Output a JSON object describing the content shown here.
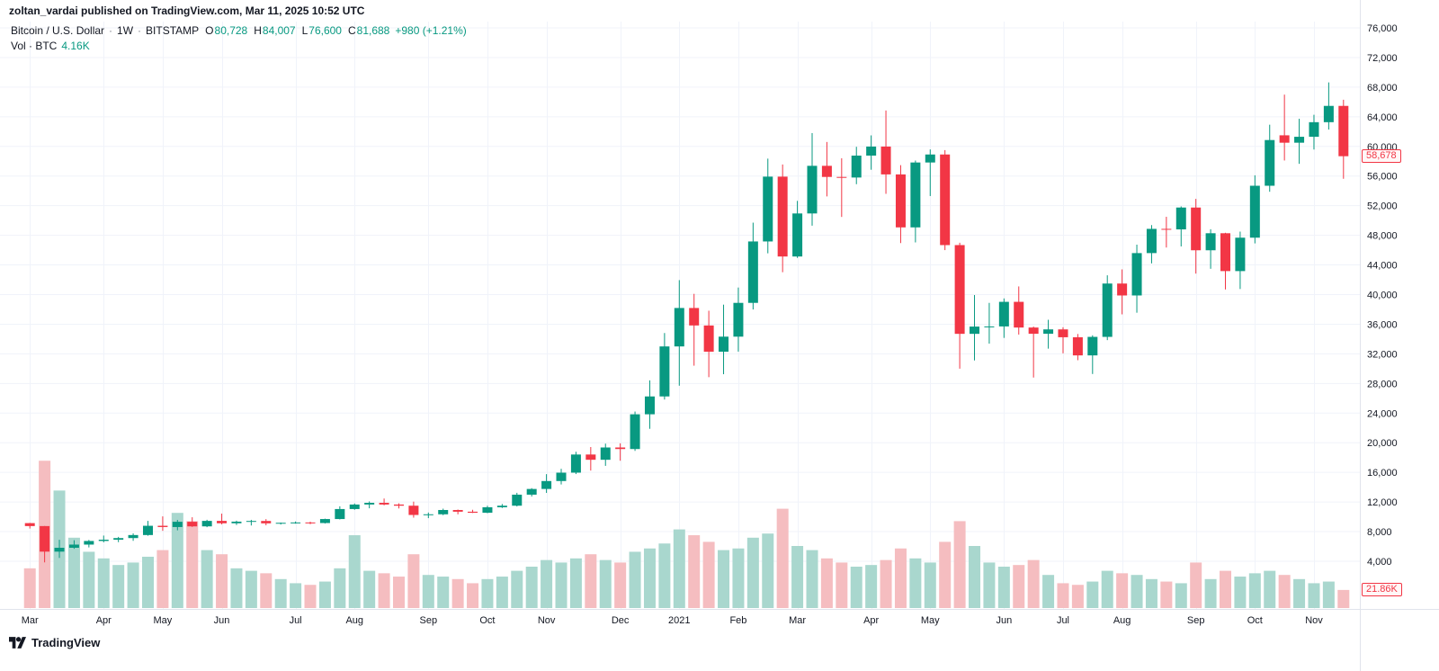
{
  "header": {
    "attribution": "zoltan_vardai published on TradingView.com, Mar 11, 2025 10:52 UTC"
  },
  "legend": {
    "title": "Bitcoin / U.S. Dollar",
    "sep": "·",
    "interval": "1W",
    "exchange": "BITSTAMP",
    "o_label": "O",
    "o_value": "80,728",
    "h_label": "H",
    "h_value": "84,007",
    "l_label": "L",
    "l_value": "76,600",
    "c_label": "C",
    "c_value": "81,688",
    "change": "+980 (+1.21%)",
    "vol_label": "Vol · BTC",
    "vol_value": "4.16K"
  },
  "price_badge": "58,678",
  "volume_badge": "21.86K",
  "watermark": "TradingView",
  "colors": {
    "up": "#089981",
    "down": "#f23645",
    "vol_up": "#a9d7ce",
    "vol_down": "#f5bdc0",
    "grid": "#f0f3fa",
    "axis_border": "#e0e3eb",
    "axis_text": "#131722",
    "badge": "#f23645"
  },
  "chart_data": {
    "type": "candlestick",
    "title": "Bitcoin / U.S. Dollar · 1W · BITSTAMP",
    "legend_note": "candles are [open, high, low, close, volume_thousand_btc] per week, Mar 2020 - Nov 2021",
    "grid": true,
    "price_axis": {
      "min": 4000,
      "max": 76000,
      "tick_step": 4000,
      "tick_values": [
        76000,
        72000,
        68000,
        64000,
        60000,
        56000,
        52000,
        48000,
        44000,
        40000,
        36000,
        32000,
        28000,
        24000,
        20000,
        16000,
        12000,
        8000,
        4000
      ],
      "tick_labels": [
        "76,000",
        "72,000",
        "68,000",
        "64,000",
        "60,000",
        "56,000",
        "52,000",
        "48,000",
        "44,000",
        "40,000",
        "36,000",
        "32,000",
        "28,000",
        "24,000",
        "20,000",
        "16,000",
        "12,000",
        "8,000",
        "4,000"
      ]
    },
    "x_ticks": [
      {
        "label": "Mar",
        "i": 0
      },
      {
        "label": "Apr",
        "i": 5
      },
      {
        "label": "May",
        "i": 9
      },
      {
        "label": "Jun",
        "i": 13
      },
      {
        "label": "Jul",
        "i": 18
      },
      {
        "label": "Aug",
        "i": 22
      },
      {
        "label": "Sep",
        "i": 27
      },
      {
        "label": "Oct",
        "i": 31
      },
      {
        "label": "Nov",
        "i": 35
      },
      {
        "label": "Dec",
        "i": 40
      },
      {
        "label": "2021",
        "i": 44
      },
      {
        "label": "Feb",
        "i": 48
      },
      {
        "label": "Mar",
        "i": 52
      },
      {
        "label": "Apr",
        "i": 57
      },
      {
        "label": "May",
        "i": 61
      },
      {
        "label": "Jun",
        "i": 66
      },
      {
        "label": "Jul",
        "i": 70
      },
      {
        "label": "Aug",
        "i": 74
      },
      {
        "label": "Sep",
        "i": 79
      },
      {
        "label": "Oct",
        "i": 83
      },
      {
        "label": "Nov",
        "i": 87
      }
    ],
    "last_close": 58678,
    "last_volume_k": 21.86,
    "candles": [
      [
        9150,
        9180,
        8420,
        8750,
        48
      ],
      [
        8750,
        8760,
        3850,
        5300,
        178
      ],
      [
        5300,
        6900,
        4450,
        5820,
        142
      ],
      [
        5820,
        6840,
        5680,
        6250,
        85
      ],
      [
        6250,
        6880,
        5870,
        6740,
        68
      ],
      [
        6740,
        7470,
        6560,
        6910,
        60
      ],
      [
        6910,
        7290,
        6580,
        7130,
        52
      ],
      [
        7130,
        7760,
        6760,
        7540,
        55
      ],
      [
        7540,
        9450,
        7450,
        8790,
        62
      ],
      [
        8790,
        10060,
        8110,
        8620,
        70
      ],
      [
        8620,
        9580,
        8180,
        9330,
        115
      ],
      [
        9330,
        9940,
        8630,
        8710,
        105
      ],
      [
        8710,
        9600,
        8600,
        9450,
        70
      ],
      [
        9450,
        10430,
        8980,
        9130,
        65
      ],
      [
        9130,
        9480,
        8900,
        9350,
        48
      ],
      [
        9350,
        9590,
        8830,
        9440,
        45
      ],
      [
        9440,
        9690,
        8860,
        9120,
        42
      ],
      [
        9120,
        9230,
        8960,
        9190,
        35
      ],
      [
        9190,
        9370,
        9070,
        9240,
        30
      ],
      [
        9240,
        9340,
        9000,
        9160,
        28
      ],
      [
        9160,
        9750,
        9100,
        9700,
        32
      ],
      [
        9700,
        11420,
        9650,
        11050,
        48
      ],
      [
        11050,
        11800,
        10950,
        11660,
        88
      ],
      [
        11660,
        12080,
        11150,
        11890,
        45
      ],
      [
        11890,
        12470,
        11550,
        11660,
        42
      ],
      [
        11660,
        11820,
        11130,
        11500,
        38
      ],
      [
        11500,
        12050,
        9890,
        10250,
        65
      ],
      [
        10250,
        10580,
        9820,
        10340,
        40
      ],
      [
        10340,
        11100,
        10220,
        10920,
        38
      ],
      [
        10920,
        10980,
        10340,
        10690,
        35
      ],
      [
        10690,
        10950,
        10520,
        10550,
        30
      ],
      [
        10550,
        11490,
        10490,
        11290,
        35
      ],
      [
        11290,
        11730,
        11190,
        11500,
        38
      ],
      [
        11500,
        13240,
        11400,
        12990,
        45
      ],
      [
        12990,
        13870,
        12740,
        13760,
        50
      ],
      [
        13760,
        15760,
        13230,
        14830,
        58
      ],
      [
        14830,
        16480,
        14370,
        15960,
        55
      ],
      [
        15960,
        18780,
        15770,
        18410,
        60
      ],
      [
        18410,
        19420,
        16240,
        17700,
        65
      ],
      [
        17700,
        19880,
        16880,
        19360,
        58
      ],
      [
        19360,
        19920,
        17570,
        19150,
        55
      ],
      [
        19150,
        24210,
        18900,
        23840,
        68
      ],
      [
        23840,
        28420,
        21880,
        26250,
        72
      ],
      [
        26250,
        34810,
        25830,
        33000,
        78
      ],
      [
        33000,
        41950,
        27700,
        38190,
        95
      ],
      [
        38190,
        40100,
        30400,
        35830,
        88
      ],
      [
        35830,
        37820,
        28850,
        32290,
        80
      ],
      [
        32290,
        38640,
        29250,
        34320,
        70
      ],
      [
        34320,
        40950,
        32300,
        38880,
        72
      ],
      [
        38880,
        49710,
        37990,
        47170,
        85
      ],
      [
        47170,
        58350,
        45570,
        55920,
        90
      ],
      [
        55920,
        57560,
        43020,
        45140,
        120
      ],
      [
        45140,
        52650,
        44950,
        50950,
        75
      ],
      [
        50950,
        61800,
        49300,
        57380,
        70
      ],
      [
        57380,
        60600,
        53250,
        55880,
        60
      ],
      [
        55880,
        58400,
        50480,
        55800,
        55
      ],
      [
        55800,
        59950,
        54900,
        58760,
        50
      ],
      [
        58760,
        61490,
        56850,
        59980,
        52
      ],
      [
        59980,
        64850,
        53600,
        56220,
        58
      ],
      [
        56220,
        57470,
        46950,
        49070,
        72
      ],
      [
        49070,
        58090,
        47040,
        57830,
        60
      ],
      [
        57830,
        59590,
        53300,
        58910,
        55
      ],
      [
        58910,
        59500,
        46000,
        46680,
        80
      ],
      [
        46680,
        47000,
        30000,
        34700,
        105
      ],
      [
        34700,
        39940,
        31110,
        35680,
        75
      ],
      [
        35680,
        38880,
        33380,
        35700,
        55
      ],
      [
        35700,
        39480,
        34150,
        39020,
        50
      ],
      [
        39020,
        41100,
        34600,
        35550,
        52
      ],
      [
        35550,
        35680,
        28800,
        34710,
        58
      ],
      [
        34710,
        36600,
        32700,
        35300,
        40
      ],
      [
        35300,
        35590,
        32070,
        34240,
        30
      ],
      [
        34240,
        34680,
        31140,
        31790,
        28
      ],
      [
        31790,
        34500,
        29280,
        34290,
        32
      ],
      [
        34290,
        42600,
        33850,
        41490,
        45
      ],
      [
        41490,
        43400,
        37330,
        39880,
        42
      ],
      [
        39880,
        46740,
        37550,
        45600,
        40
      ],
      [
        45600,
        49380,
        44210,
        48870,
        35
      ],
      [
        48870,
        50500,
        46350,
        48800,
        32
      ],
      [
        48800,
        51900,
        46500,
        51750,
        30
      ],
      [
        51750,
        52920,
        42830,
        45980,
        55
      ],
      [
        45980,
        48820,
        43480,
        48280,
        35
      ],
      [
        48280,
        48340,
        40690,
        43170,
        45
      ],
      [
        43170,
        48500,
        40750,
        47680,
        38
      ],
      [
        47680,
        56100,
        46910,
        54690,
        42
      ],
      [
        54690,
        62930,
        53880,
        60860,
        45
      ],
      [
        61500,
        66990,
        58100,
        60500,
        40
      ],
      [
        60500,
        63730,
        57650,
        61300,
        35
      ],
      [
        61300,
        64270,
        59580,
        63270,
        30
      ],
      [
        63270,
        68640,
        62280,
        65470,
        32
      ],
      [
        65470,
        66300,
        55630,
        58678,
        21.86
      ]
    ]
  }
}
